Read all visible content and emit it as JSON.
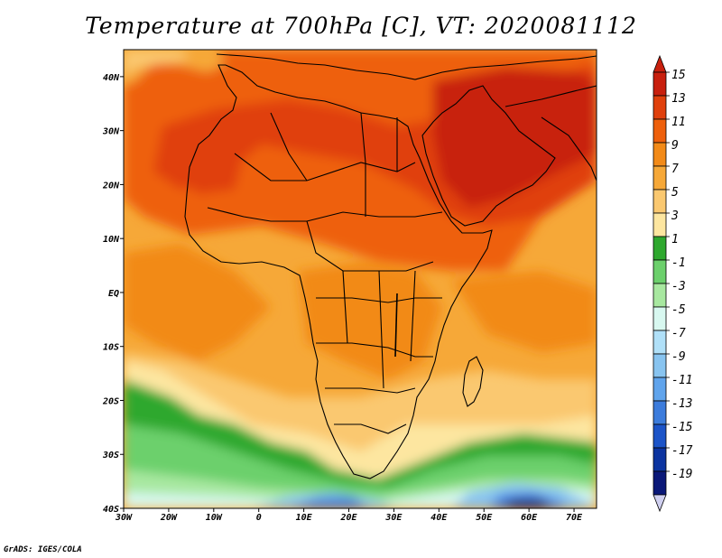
{
  "title": "Temperature at 700hPa [C], VT: 2020081112",
  "credit": "GrADS: IGES/COLA",
  "map": {
    "lon_range": [
      -30,
      75
    ],
    "lat_range": [
      -40,
      45
    ],
    "x_ticks": [
      "30W",
      "20W",
      "10W",
      "0",
      "10E",
      "20E",
      "30E",
      "40E",
      "50E",
      "60E",
      "70E"
    ],
    "y_ticks": [
      "40N",
      "30N",
      "20N",
      "10N",
      "EQ",
      "10S",
      "20S",
      "30S",
      "40S"
    ]
  },
  "colorbar": {
    "labels": [
      "15",
      "13",
      "11",
      "9",
      "7",
      "5",
      "3",
      "1",
      "-1",
      "-3",
      "-5",
      "-7",
      "-9",
      "-11",
      "-13",
      "-15",
      "-17",
      "-19"
    ],
    "colors": [
      "#c8200e",
      "#e0400c",
      "#ee600c",
      "#f28a18",
      "#f6a838",
      "#fac870",
      "#fde6a0",
      "#2ea82e",
      "#6cd06c",
      "#a8e8a0",
      "#d8f8f0",
      "#b0e0f8",
      "#88c4f0",
      "#60a4ec",
      "#3c7cdc",
      "#1c54c8",
      "#0c34a0",
      "#0a1878"
    ]
  }
}
